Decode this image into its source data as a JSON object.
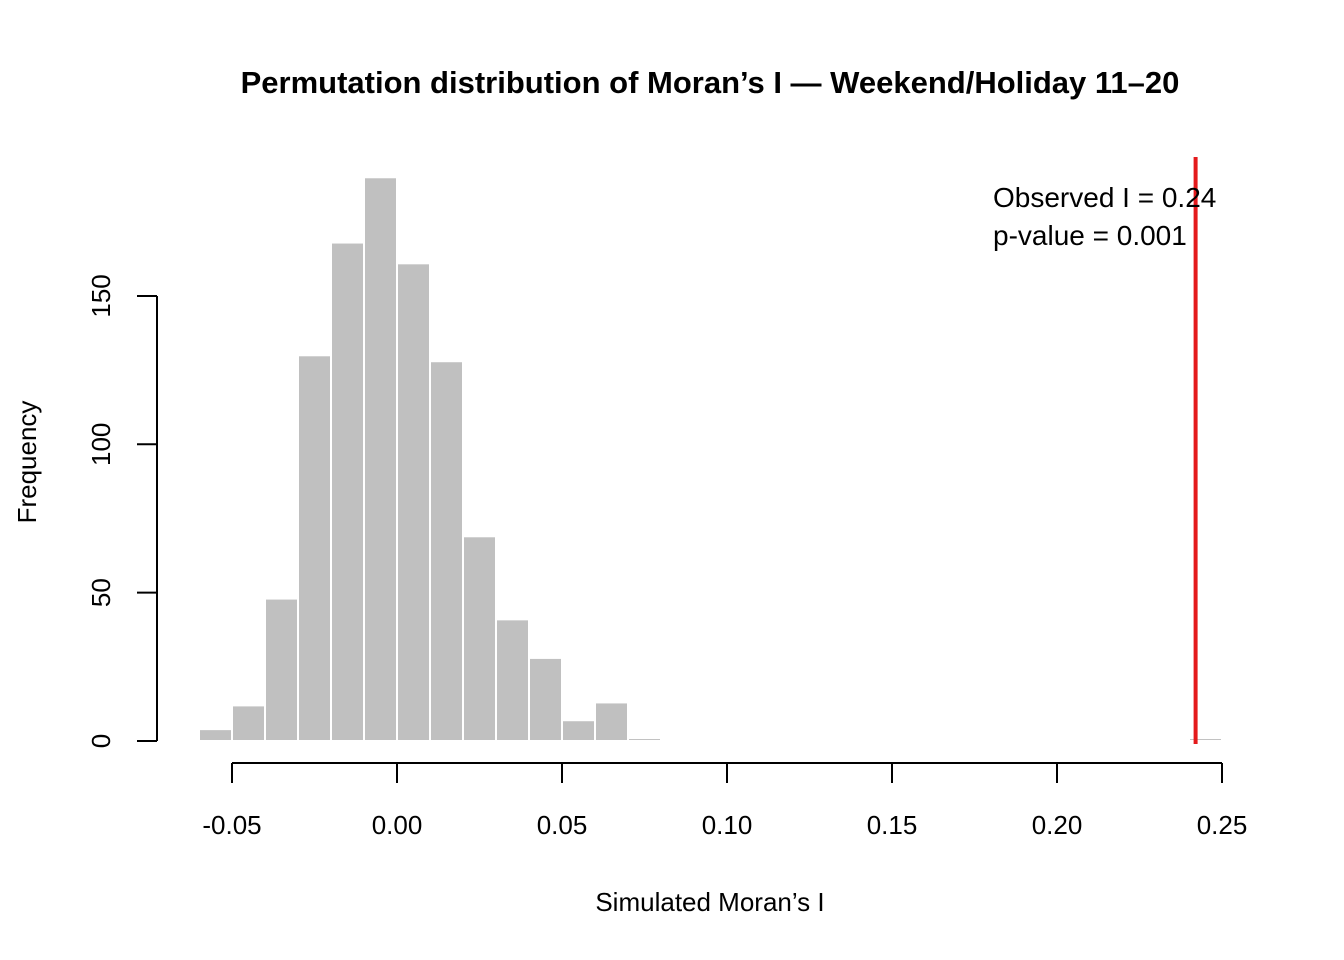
{
  "chart_data": {
    "type": "bar",
    "title": "Permutation distribution of Moran’s I — Weekend/Holiday 11–20",
    "xlabel": "Simulated Moran’s I",
    "ylabel": "Frequency",
    "bin_edges": [
      -0.06,
      -0.05,
      -0.04,
      -0.03,
      -0.02,
      -0.01,
      0.0,
      0.01,
      0.02,
      0.03,
      0.04,
      0.05,
      0.06,
      0.07,
      0.08,
      0.09,
      0.1,
      0.11,
      0.12,
      0.13,
      0.14,
      0.15,
      0.16,
      0.17,
      0.18,
      0.19,
      0.2,
      0.21,
      0.22,
      0.23,
      0.24,
      0.25
    ],
    "counts": [
      4,
      12,
      48,
      130,
      168,
      190,
      161,
      128,
      69,
      41,
      28,
      7,
      13,
      1,
      0,
      0,
      0,
      0,
      0,
      0,
      0,
      0,
      0,
      0,
      0,
      0,
      0,
      0,
      0,
      0,
      1
    ],
    "xlim": [
      -0.05,
      0.25
    ],
    "ylim": [
      0,
      190
    ],
    "x_ticks": [
      "-0.05",
      "0.00",
      "0.05",
      "0.10",
      "0.15",
      "0.20",
      "0.25"
    ],
    "y_ticks": [
      "0",
      "50",
      "100",
      "150"
    ],
    "bar_color": "#c0c0c0",
    "observed_line": {
      "x": 0.242,
      "color": "#e41a1c"
    },
    "annotation": [
      "Observed I = 0.24",
      "p-value = 0.001"
    ],
    "grid": false
  }
}
